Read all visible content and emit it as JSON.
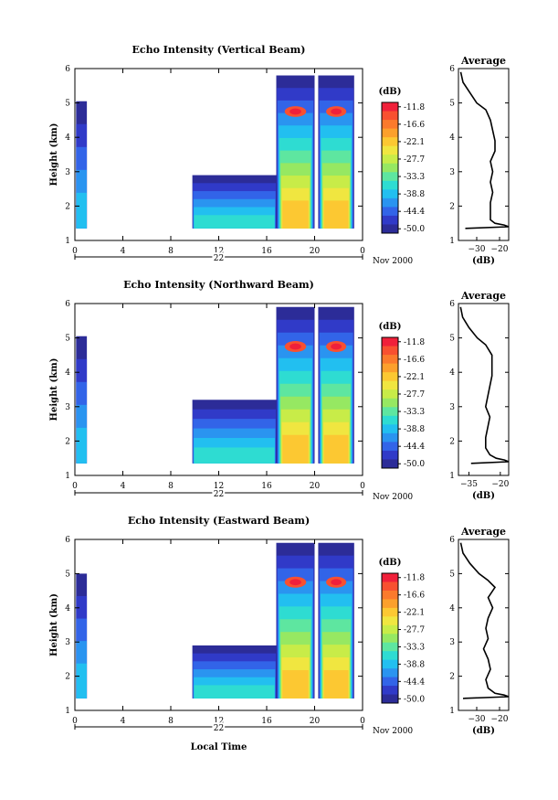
{
  "chart_data": [
    {
      "type": "heatmap",
      "title": "Echo Intensity (Vertical Beam)",
      "ylabel": "Height (km)",
      "ylim": [
        1,
        6
      ],
      "yticks": [
        "1",
        "2",
        "3",
        "4",
        "5",
        "6"
      ],
      "xlim": [
        0,
        24
      ],
      "xticks": [
        "0",
        "4",
        "8",
        "12",
        "16",
        "20",
        "0"
      ],
      "date_day": "22",
      "date_label": "Nov 2000",
      "colorbar": {
        "unit": "(dB)",
        "labels": [
          "-11.8",
          "-16.6",
          "-22.1",
          "-27.7",
          "-33.3",
          "-38.8",
          "-44.4",
          "-50.0"
        ],
        "colors": [
          "#f0203a",
          "#f85030",
          "#fb7a2c",
          "#fca02c",
          "#fcc832",
          "#f0e640",
          "#c8ec48",
          "#96e862",
          "#5ee6a0",
          "#2edcd2",
          "#22bff0",
          "#2a94f0",
          "#3264e8",
          "#303ac8",
          "#2c2c98"
        ]
      },
      "echo_regions": [
        {
          "x0": 0.1,
          "x1": 1.0,
          "y0": 1.35,
          "y1": 5.05,
          "level": 10
        },
        {
          "x0": 9.8,
          "x1": 16.8,
          "y0": 1.35,
          "y1": 2.9,
          "level": 9
        },
        {
          "x0": 16.8,
          "x1": 20.0,
          "y0": 1.35,
          "y1": 5.8,
          "level": 4
        },
        {
          "x0": 20.3,
          "x1": 23.3,
          "y0": 1.35,
          "y1": 5.8,
          "level": 4
        }
      ],
      "average_profile": {
        "title": "Average",
        "xlabel": "(dB)",
        "xticks": [
          "-30",
          "-20"
        ],
        "xlim": [
          -38,
          -16
        ],
        "x": [
          -37,
          -36,
          -33,
          -30,
          -26,
          -24,
          -23,
          -22,
          -22,
          -24,
          -23,
          -24,
          -23,
          -24,
          -24,
          -24,
          -22,
          -18,
          -16,
          -35
        ],
        "y": [
          5.9,
          5.6,
          5.3,
          5.0,
          4.8,
          4.5,
          4.2,
          3.9,
          3.6,
          3.3,
          3.0,
          2.7,
          2.4,
          2.1,
          1.8,
          1.6,
          1.5,
          1.45,
          1.4,
          1.35
        ]
      }
    },
    {
      "type": "heatmap",
      "title": "Echo Intensity (Northward Beam)",
      "ylabel": "Height (km)",
      "ylim": [
        1,
        6
      ],
      "yticks": [
        "1",
        "2",
        "3",
        "4",
        "5",
        "6"
      ],
      "xlim": [
        0,
        24
      ],
      "xticks": [
        "0",
        "4",
        "8",
        "12",
        "16",
        "20",
        "0"
      ],
      "date_day": "22",
      "date_label": "Nov 2000",
      "colorbar": {
        "unit": "(dB)",
        "labels": [
          "-11.8",
          "-16.6",
          "-22.1",
          "-27.7",
          "-33.3",
          "-38.8",
          "-44.4",
          "-50.0"
        ],
        "colors": [
          "#f0203a",
          "#f85030",
          "#fb7a2c",
          "#fca02c",
          "#fcc832",
          "#f0e640",
          "#c8ec48",
          "#96e862",
          "#5ee6a0",
          "#2edcd2",
          "#22bff0",
          "#2a94f0",
          "#3264e8",
          "#303ac8",
          "#2c2c98"
        ]
      },
      "echo_regions": [
        {
          "x0": 0.1,
          "x1": 1.0,
          "y0": 1.35,
          "y1": 5.05,
          "level": 10
        },
        {
          "x0": 9.8,
          "x1": 16.8,
          "y0": 1.35,
          "y1": 3.2,
          "level": 9
        },
        {
          "x0": 16.8,
          "x1": 20.0,
          "y0": 1.35,
          "y1": 5.9,
          "level": 4
        },
        {
          "x0": 20.3,
          "x1": 23.3,
          "y0": 1.35,
          "y1": 5.9,
          "level": 4
        }
      ],
      "average_profile": {
        "title": "Average",
        "xlabel": "(dB)",
        "xticks": [
          "-35",
          "-20"
        ],
        "xlim": [
          -40,
          -16
        ],
        "x": [
          -39,
          -38,
          -35,
          -31,
          -27,
          -24,
          -24,
          -24,
          -25,
          -26,
          -27,
          -25,
          -26,
          -27,
          -27,
          -25,
          -22,
          -18,
          -16,
          -34
        ],
        "y": [
          5.9,
          5.6,
          5.3,
          5.0,
          4.8,
          4.5,
          4.2,
          3.9,
          3.6,
          3.3,
          3.0,
          2.7,
          2.4,
          2.1,
          1.8,
          1.6,
          1.5,
          1.45,
          1.4,
          1.35
        ]
      }
    },
    {
      "type": "heatmap",
      "title": "Echo Intensity (Eastward Beam)",
      "ylabel": "Height (km)",
      "xlabel": "Local Time",
      "ylim": [
        1,
        6
      ],
      "yticks": [
        "1",
        "2",
        "3",
        "4",
        "5",
        "6"
      ],
      "xlim": [
        0,
        24
      ],
      "xticks": [
        "0",
        "4",
        "8",
        "12",
        "16",
        "20",
        "0"
      ],
      "date_day": "22",
      "date_label": "Nov 2000",
      "colorbar": {
        "unit": "(dB)",
        "labels": [
          "-11.8",
          "-16.6",
          "-22.1",
          "-27.7",
          "-33.3",
          "-38.8",
          "-44.4",
          "-50.0"
        ],
        "colors": [
          "#f0203a",
          "#f85030",
          "#fb7a2c",
          "#fca02c",
          "#fcc832",
          "#f0e640",
          "#c8ec48",
          "#96e862",
          "#5ee6a0",
          "#2edcd2",
          "#22bff0",
          "#2a94f0",
          "#3264e8",
          "#303ac8",
          "#2c2c98"
        ]
      },
      "echo_regions": [
        {
          "x0": 0.1,
          "x1": 1.0,
          "y0": 1.35,
          "y1": 5.0,
          "level": 10
        },
        {
          "x0": 9.8,
          "x1": 16.8,
          "y0": 1.35,
          "y1": 2.9,
          "level": 9
        },
        {
          "x0": 16.8,
          "x1": 20.0,
          "y0": 1.35,
          "y1": 5.9,
          "level": 4
        },
        {
          "x0": 20.3,
          "x1": 23.3,
          "y0": 1.35,
          "y1": 5.9,
          "level": 4
        }
      ],
      "average_profile": {
        "title": "Average",
        "xlabel": "(dB)",
        "xticks": [
          "-30",
          "-20"
        ],
        "xlim": [
          -38,
          -16
        ],
        "x": [
          -37,
          -36,
          -33,
          -29,
          -25,
          -22,
          -25,
          -23,
          -25,
          -26,
          -25,
          -27,
          -25,
          -24,
          -26,
          -25,
          -22,
          -18,
          -16,
          -36
        ],
        "y": [
          5.9,
          5.6,
          5.3,
          5.0,
          4.8,
          4.6,
          4.3,
          4.0,
          3.7,
          3.4,
          3.1,
          2.8,
          2.5,
          2.2,
          1.9,
          1.65,
          1.5,
          1.45,
          1.4,
          1.35
        ]
      }
    }
  ]
}
